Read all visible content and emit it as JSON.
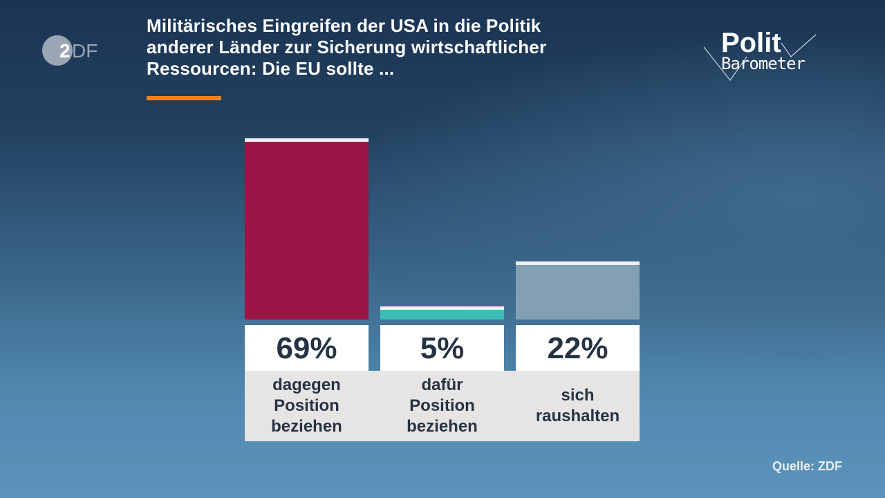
{
  "header": {
    "title_lines": [
      "Militärisches Eingreifen der USA in die Politik",
      "anderer Länder zur Sicherung wirtschaftlicher",
      "Ressourcen: Die EU sollte ..."
    ],
    "logo_left": "ZDF",
    "logo_right": {
      "line1": "Polit",
      "line2": "Barometer"
    },
    "accent_color": "#f5821f"
  },
  "chart_data": {
    "type": "bar",
    "title": "Militärisches Eingreifen der USA in die Politik anderer Länder zur Sicherung wirtschaftlicher Ressourcen: Die EU sollte ...",
    "categories": [
      "dagegen Position beziehen",
      "dafür Position beziehen",
      "sich raushalten"
    ],
    "category_lines": [
      [
        "dagegen",
        "Position",
        "beziehen"
      ],
      [
        "dafür",
        "Position",
        "beziehen"
      ],
      [
        "sich",
        "raushalten"
      ]
    ],
    "values": [
      69,
      5,
      22
    ],
    "value_labels": [
      "69%",
      "5%",
      "22%"
    ],
    "colors": [
      "#9b1646",
      "#3cbfb2",
      "#839fb2"
    ],
    "unit": "%",
    "ylim": [
      0,
      69
    ],
    "grid": false
  },
  "footer": {
    "source": "Quelle: ZDF"
  }
}
